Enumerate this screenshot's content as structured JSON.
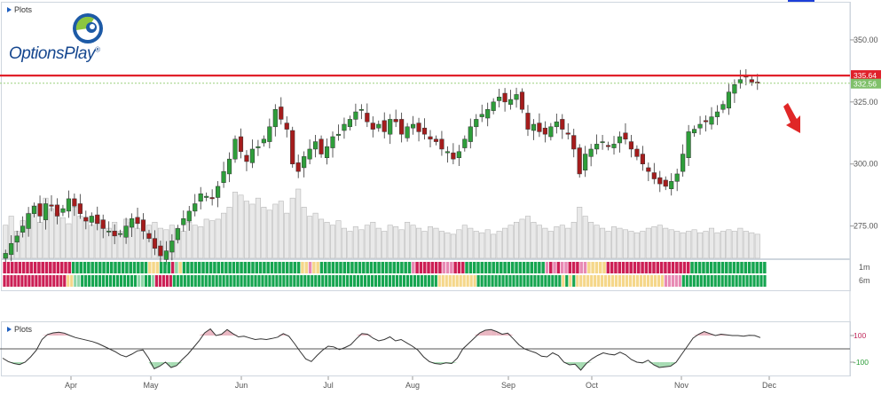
{
  "app": {
    "logo_text": "OptionsPlay",
    "logo_mark": "®"
  },
  "panels": {
    "main_label": "Plots",
    "indicator_label": "Plots"
  },
  "colors": {
    "up": "#2e9e3a",
    "down": "#a51c1c",
    "resistance": "#e0202a",
    "current_price_bg": "#7fc06a",
    "volume_fill": "#e9e9e9",
    "volume_stroke": "#b9b9b9",
    "band_red": "#cc1f55",
    "band_pink": "#e88ab4",
    "band_yellow": "#f5d78a",
    "band_lightgreen": "#8fd6a8",
    "band_green": "#16a550",
    "osc_pos_fill": "#e9b7c2",
    "osc_neg_fill": "#a7dcb3",
    "arrow": "#e02727"
  },
  "chart_data": {
    "type": "candlestick",
    "title": "",
    "x_ticks": [
      "Apr",
      "May",
      "Jun",
      "Jul",
      "Aug",
      "Sep",
      "Oct",
      "Nov",
      "Dec"
    ],
    "price_axis": {
      "ticks": [
        275.0,
        300.0,
        325.0,
        350.0
      ],
      "tick_labels": [
        "275.00",
        "300.00",
        "325.00",
        "350.00"
      ],
      "range": [
        262,
        365
      ]
    },
    "resistance_line": {
      "value": 335.64,
      "label": "335.64"
    },
    "last_price": {
      "value": 332.56,
      "label": "332.56"
    },
    "annotation": "red down arrow (bearish) at right",
    "closes": [
      264,
      268,
      271,
      275,
      280,
      283,
      279,
      284,
      283,
      279,
      282,
      286,
      283,
      280,
      277,
      279,
      276,
      274,
      273,
      271,
      272,
      275,
      278,
      276,
      273,
      270,
      266,
      263,
      265,
      269,
      274,
      278,
      281,
      284,
      288,
      287,
      286,
      291,
      297,
      302,
      310,
      305,
      301,
      306,
      307,
      310,
      315,
      322,
      318,
      314,
      300,
      297,
      303,
      306,
      309,
      304,
      307,
      311,
      312,
      316,
      318,
      321,
      322,
      317,
      314,
      316,
      313,
      318,
      317,
      312,
      315,
      316,
      313,
      312,
      310,
      309,
      306,
      305,
      302,
      305,
      310,
      315,
      318,
      320,
      322,
      325,
      327,
      325,
      326,
      328,
      322,
      314,
      316,
      313,
      312,
      315,
      317,
      314,
      312,
      306,
      296,
      304,
      306,
      308,
      309,
      307,
      308,
      311,
      310,
      306,
      303,
      300,
      297,
      294,
      292,
      291,
      293,
      296,
      304,
      313,
      314,
      316,
      317,
      319,
      321,
      324,
      329,
      332,
      334,
      335,
      333,
      332.56
    ],
    "volume": [
      22,
      28,
      18,
      25,
      30,
      35,
      24,
      40,
      33,
      30,
      27,
      23,
      34,
      28,
      25,
      22,
      26,
      22,
      20,
      24,
      18,
      26,
      24,
      20,
      18,
      22,
      24,
      20,
      19,
      22,
      20,
      18,
      24,
      22,
      21,
      26,
      25,
      26,
      30,
      34,
      44,
      42,
      38,
      36,
      40,
      34,
      32,
      36,
      38,
      30,
      40,
      46,
      34,
      28,
      30,
      26,
      24,
      22,
      25,
      20,
      18,
      21,
      19,
      22,
      24,
      20,
      18,
      22,
      21,
      19,
      24,
      22,
      20,
      18,
      21,
      20,
      18,
      17,
      16,
      19,
      22,
      20,
      18,
      17,
      19,
      16,
      18,
      20,
      22,
      24,
      26,
      28,
      24,
      22,
      20,
      18,
      21,
      22,
      20,
      24,
      34,
      28,
      24,
      22,
      20,
      18,
      21,
      20,
      19,
      18,
      17,
      18,
      20,
      21,
      22,
      20,
      19,
      18,
      17,
      18,
      19,
      17,
      18,
      20,
      17,
      18,
      19,
      18,
      20,
      18,
      17,
      16
    ],
    "band_rows": [
      {
        "label": "1m",
        "colors": [
          "R",
          "R",
          "R",
          "R",
          "R",
          "R",
          "R",
          "R",
          "R",
          "R",
          "R",
          "R",
          "R",
          "R",
          "R",
          "R",
          "R",
          "R",
          "G",
          "G",
          "G",
          "G",
          "G",
          "G",
          "G",
          "G",
          "G",
          "G",
          "G",
          "G",
          "G",
          "G",
          "G",
          "G",
          "G",
          "G",
          "G",
          "G",
          "Y",
          "Y",
          "Y",
          "G",
          "G",
          "G",
          "R",
          "L",
          "Y",
          "G",
          "G",
          "G",
          "G",
          "G",
          "G",
          "G",
          "G",
          "G",
          "G",
          "G",
          "G",
          "G",
          "G",
          "G",
          "G",
          "G",
          "G",
          "G",
          "G",
          "G",
          "G",
          "G",
          "G",
          "G",
          "G",
          "G",
          "G",
          "G",
          "G",
          "G",
          "Y",
          "Y",
          "P",
          "Y",
          "Y",
          "G",
          "G",
          "G",
          "G",
          "G",
          "G",
          "G",
          "G",
          "G",
          "G",
          "G",
          "G",
          "G",
          "G",
          "G",
          "G",
          "G",
          "G",
          "G",
          "G",
          "G",
          "G",
          "G",
          "G",
          "P",
          "R",
          "R",
          "R",
          "R",
          "R",
          "R",
          "R",
          "P",
          "P",
          "P",
          "R",
          "R",
          "R",
          "G",
          "G",
          "G",
          "G",
          "G",
          "G",
          "G",
          "G",
          "G",
          "G",
          "G",
          "G",
          "G",
          "G",
          "G",
          "G",
          "G",
          "G",
          "G",
          "G",
          "G",
          "P",
          "R",
          "P",
          "R",
          "P",
          "P",
          "R",
          "R",
          "R",
          "P",
          "P",
          "Y",
          "Y",
          "Y",
          "Y",
          "Y",
          "R",
          "R",
          "R",
          "R",
          "R",
          "R",
          "R",
          "R",
          "R",
          "R",
          "R",
          "R",
          "R",
          "R",
          "R",
          "R",
          "R",
          "R",
          "R",
          "R",
          "R",
          "R",
          "G",
          "G",
          "G",
          "G",
          "G",
          "G",
          "G",
          "G",
          "G",
          "G",
          "G",
          "G",
          "G",
          "G",
          "G",
          "G",
          "G",
          "G",
          "G",
          "G"
        ]
      },
      {
        "label": "6m",
        "colors": [
          "R",
          "R",
          "R",
          "R",
          "R",
          "R",
          "R",
          "R",
          "R",
          "R",
          "R",
          "R",
          "R",
          "R",
          "R",
          "R",
          "R",
          "R",
          "Y",
          "Y",
          "L",
          "L",
          "G",
          "G",
          "G",
          "G",
          "G",
          "G",
          "G",
          "G",
          "G",
          "G",
          "G",
          "G",
          "G",
          "G",
          "G",
          "G",
          "L",
          "L",
          "G",
          "G",
          "L",
          "R",
          "R",
          "R",
          "R",
          "R",
          "G",
          "G",
          "G",
          "G",
          "G",
          "G",
          "G",
          "G",
          "G",
          "G",
          "G",
          "G",
          "G",
          "G",
          "G",
          "G",
          "G",
          "G",
          "G",
          "G",
          "G",
          "G",
          "G",
          "G",
          "G",
          "G",
          "G",
          "G",
          "G",
          "G",
          "G",
          "G",
          "G",
          "G",
          "G",
          "G",
          "G",
          "G",
          "G",
          "G",
          "G",
          "G",
          "G",
          "G",
          "G",
          "G",
          "G",
          "G",
          "G",
          "G",
          "G",
          "G",
          "G",
          "G",
          "G",
          "G",
          "G",
          "G",
          "G",
          "G",
          "G",
          "G",
          "G",
          "G",
          "G",
          "G",
          "G",
          "G",
          "G",
          "G",
          "G",
          "G",
          "G",
          "G",
          "G",
          "Y",
          "Y",
          "Y",
          "Y",
          "Y",
          "Y",
          "Y",
          "Y",
          "Y",
          "Y",
          "Y",
          "G",
          "G",
          "G",
          "G",
          "G",
          "G",
          "G",
          "G",
          "G",
          "G",
          "G",
          "G",
          "G",
          "G",
          "G",
          "G",
          "G",
          "G",
          "G",
          "G",
          "G",
          "G",
          "G",
          "G",
          "Y",
          "G",
          "Y",
          "G",
          "Y",
          "Y",
          "Y",
          "Y",
          "Y",
          "Y",
          "Y",
          "Y",
          "Y",
          "Y",
          "Y",
          "Y",
          "Y",
          "Y",
          "Y",
          "Y",
          "Y",
          "Y",
          "Y",
          "Y",
          "Y",
          "Y",
          "Y",
          "Y",
          "Y",
          "P",
          "P",
          "P",
          "P",
          "P",
          "G",
          "G",
          "G",
          "G",
          "G",
          "G",
          "G",
          "G",
          "G",
          "G",
          "G",
          "G",
          "G",
          "G",
          "G",
          "G",
          "G",
          "G",
          "G",
          "G",
          "G",
          "G",
          "G",
          "G"
        ]
      }
    ],
    "oscillator": {
      "ticks": [
        100,
        -100
      ],
      "tick_labels": [
        "100",
        "-100"
      ],
      "range": [
        -200,
        200
      ],
      "values": [
        -70,
        -95,
        -110,
        -118,
        -100,
        -60,
        -10,
        70,
        108,
        120,
        125,
        118,
        100,
        85,
        75,
        65,
        55,
        40,
        20,
        0,
        -20,
        -45,
        -60,
        -40,
        -15,
        -8,
        -70,
        -150,
        -130,
        -100,
        -140,
        -125,
        -80,
        -40,
        10,
        60,
        120,
        150,
        100,
        110,
        145,
        115,
        90,
        95,
        82,
        70,
        75,
        70,
        78,
        88,
        115,
        95,
        40,
        -20,
        -75,
        -95,
        -50,
        -10,
        20,
        15,
        -5,
        10,
        30,
        75,
        115,
        110,
        80,
        60,
        70,
        90,
        60,
        70,
        45,
        20,
        -10,
        -60,
        -95,
        -110,
        -115,
        -105,
        -110,
        -70,
        0,
        40,
        80,
        120,
        140,
        145,
        130,
        110,
        118,
        75,
        30,
        0,
        -15,
        -30,
        -55,
        -60,
        -30,
        -50,
        -100,
        -120,
        -115,
        -160,
        -110,
        -75,
        -50,
        -30,
        -40,
        -45,
        -25,
        -45,
        -80,
        -100,
        -105,
        -85,
        -120,
        -140,
        -135,
        -130,
        -100,
        -40,
        20,
        80,
        110,
        130,
        115,
        100,
        110,
        105,
        100,
        100,
        95,
        102,
        100,
        85
      ]
    }
  }
}
